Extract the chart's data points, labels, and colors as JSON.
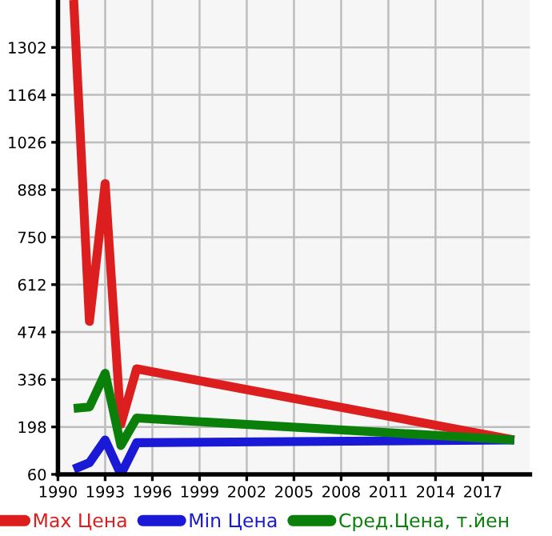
{
  "chart_data": {
    "type": "line",
    "x": [
      1991,
      1992,
      1993,
      1994,
      1995,
      2019
    ],
    "series": [
      {
        "name": "Max Цена",
        "color": "#dc1e1e",
        "values": [
          1440,
          505,
          906,
          206,
          367,
          160
        ]
      },
      {
        "name": "Min Цена",
        "color": "#1a1ad6",
        "values": [
          75,
          94,
          160,
          60,
          152,
          160
        ]
      },
      {
        "name": "Сред.Цена, т.йен",
        "color": "#0a800a",
        "values": [
          252,
          256,
          354,
          144,
          224,
          160
        ]
      }
    ],
    "xlim": [
      1990,
      2020
    ],
    "xticks": [
      1990,
      1993,
      1996,
      1999,
      2002,
      2005,
      2008,
      2011,
      2014,
      2017
    ],
    "ylim": [
      60,
      1440
    ],
    "yticks": [
      60,
      198,
      336,
      474,
      612,
      750,
      888,
      1026,
      1164,
      1302
    ],
    "grid": true,
    "legend": "bottom",
    "marker": "none",
    "line_style": "solid"
  }
}
